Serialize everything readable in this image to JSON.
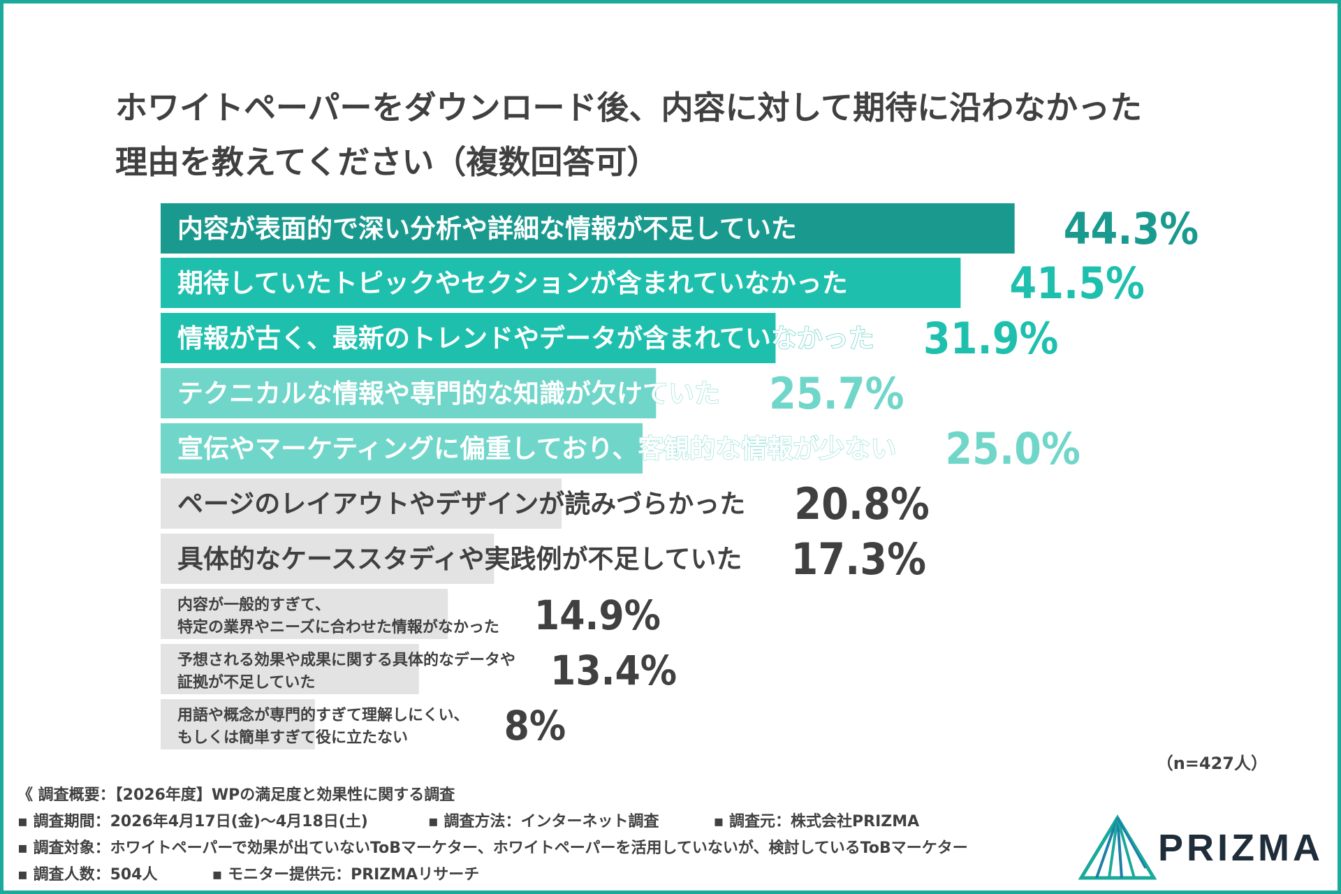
{
  "title_line1": "ホワイトペーパーをダウンロード後、内容に対して期待に沿わなかった",
  "title_line2": "理由を教えてください（複数回答可）",
  "n_note": "（n=427人）",
  "footer": {
    "overview": "《 調査概要：【2026年度】WPの満足度と効果性に関する調査",
    "period": "▪ 調査期間：2026年4月17日(金)〜4月18日(土)",
    "method": "▪ 調査方法：インターネット調査",
    "source": "▪ 調査元：株式会社PRIZMA",
    "target": "▪ 調査対象：ホワイトペーパーで効果が出ていないToBマーケター、ホワイトペーパーを活用していないが、検討しているToBマーケター",
    "respondents": "▪ 調査人数：504人",
    "monitor": "▪ モニター提供元：PRIZMAリサーチ"
  },
  "logo_text": "PRIZMA",
  "colors": {
    "frame": "#1aa99a",
    "dark_teal": "#1a9a8f",
    "teal": "#1ec0ad",
    "light_teal": "#6fd6c9",
    "gray": "#e3e3e3",
    "dark_text": "#404040"
  },
  "chart_data": {
    "type": "bar",
    "orientation": "horizontal",
    "categories": [
      [
        "内容が表面的で深い分析や詳細な情報が不足していた"
      ],
      [
        "期待していたトピックやセクションが含まれていなかった"
      ],
      [
        "情報が古く、最新のトレンドやデータが含まれていなかった"
      ],
      [
        "テクニカルな情報や専門的な知識が欠けていた"
      ],
      [
        "宣伝やマーケティングに偏重しており、客観的な情報が少ない"
      ],
      [
        "ページのレイアウトやデザインが読みづらかった"
      ],
      [
        "具体的なケーススタディや実践例が不足していた"
      ],
      [
        "内容が一般的すぎて、",
        "特定の業界やニーズに合わせた情報がなかった"
      ],
      [
        "予想される効果や成果に関する具体的なデータや",
        "証拠が不足していた"
      ],
      [
        "用語や概念が専門的すぎて理解しにくい、",
        "もしくは簡単すぎて役に立たない"
      ]
    ],
    "values": [
      44.3,
      41.5,
      31.9,
      25.7,
      25.0,
      20.8,
      17.3,
      14.9,
      13.4,
      8
    ],
    "value_labels": [
      "44.3%",
      "41.5%",
      "31.9%",
      "25.7%",
      "25.0%",
      "20.8%",
      "17.3%",
      "14.9%",
      "13.4%",
      "8%"
    ],
    "bar_colors": [
      "#1a9a8f",
      "#1ec0ad",
      "#1ec0ad",
      "#6fd6c9",
      "#6fd6c9",
      "#e3e3e3",
      "#e3e3e3",
      "#e3e3e3",
      "#e3e3e3",
      "#e3e3e3"
    ],
    "label_colors": [
      "#ffffff",
      "#ffffff",
      "#ffffff",
      "#ffffff",
      "#ffffff",
      "#404040",
      "#404040",
      "#404040",
      "#404040",
      "#404040"
    ],
    "value_colors": [
      "#1a9a8f",
      "#1ec0ad",
      "#1ec0ad",
      "#6fd6c9",
      "#6fd6c9",
      "#404040",
      "#404040",
      "#404040",
      "#404040",
      "#404040"
    ],
    "unit": "%"
  }
}
